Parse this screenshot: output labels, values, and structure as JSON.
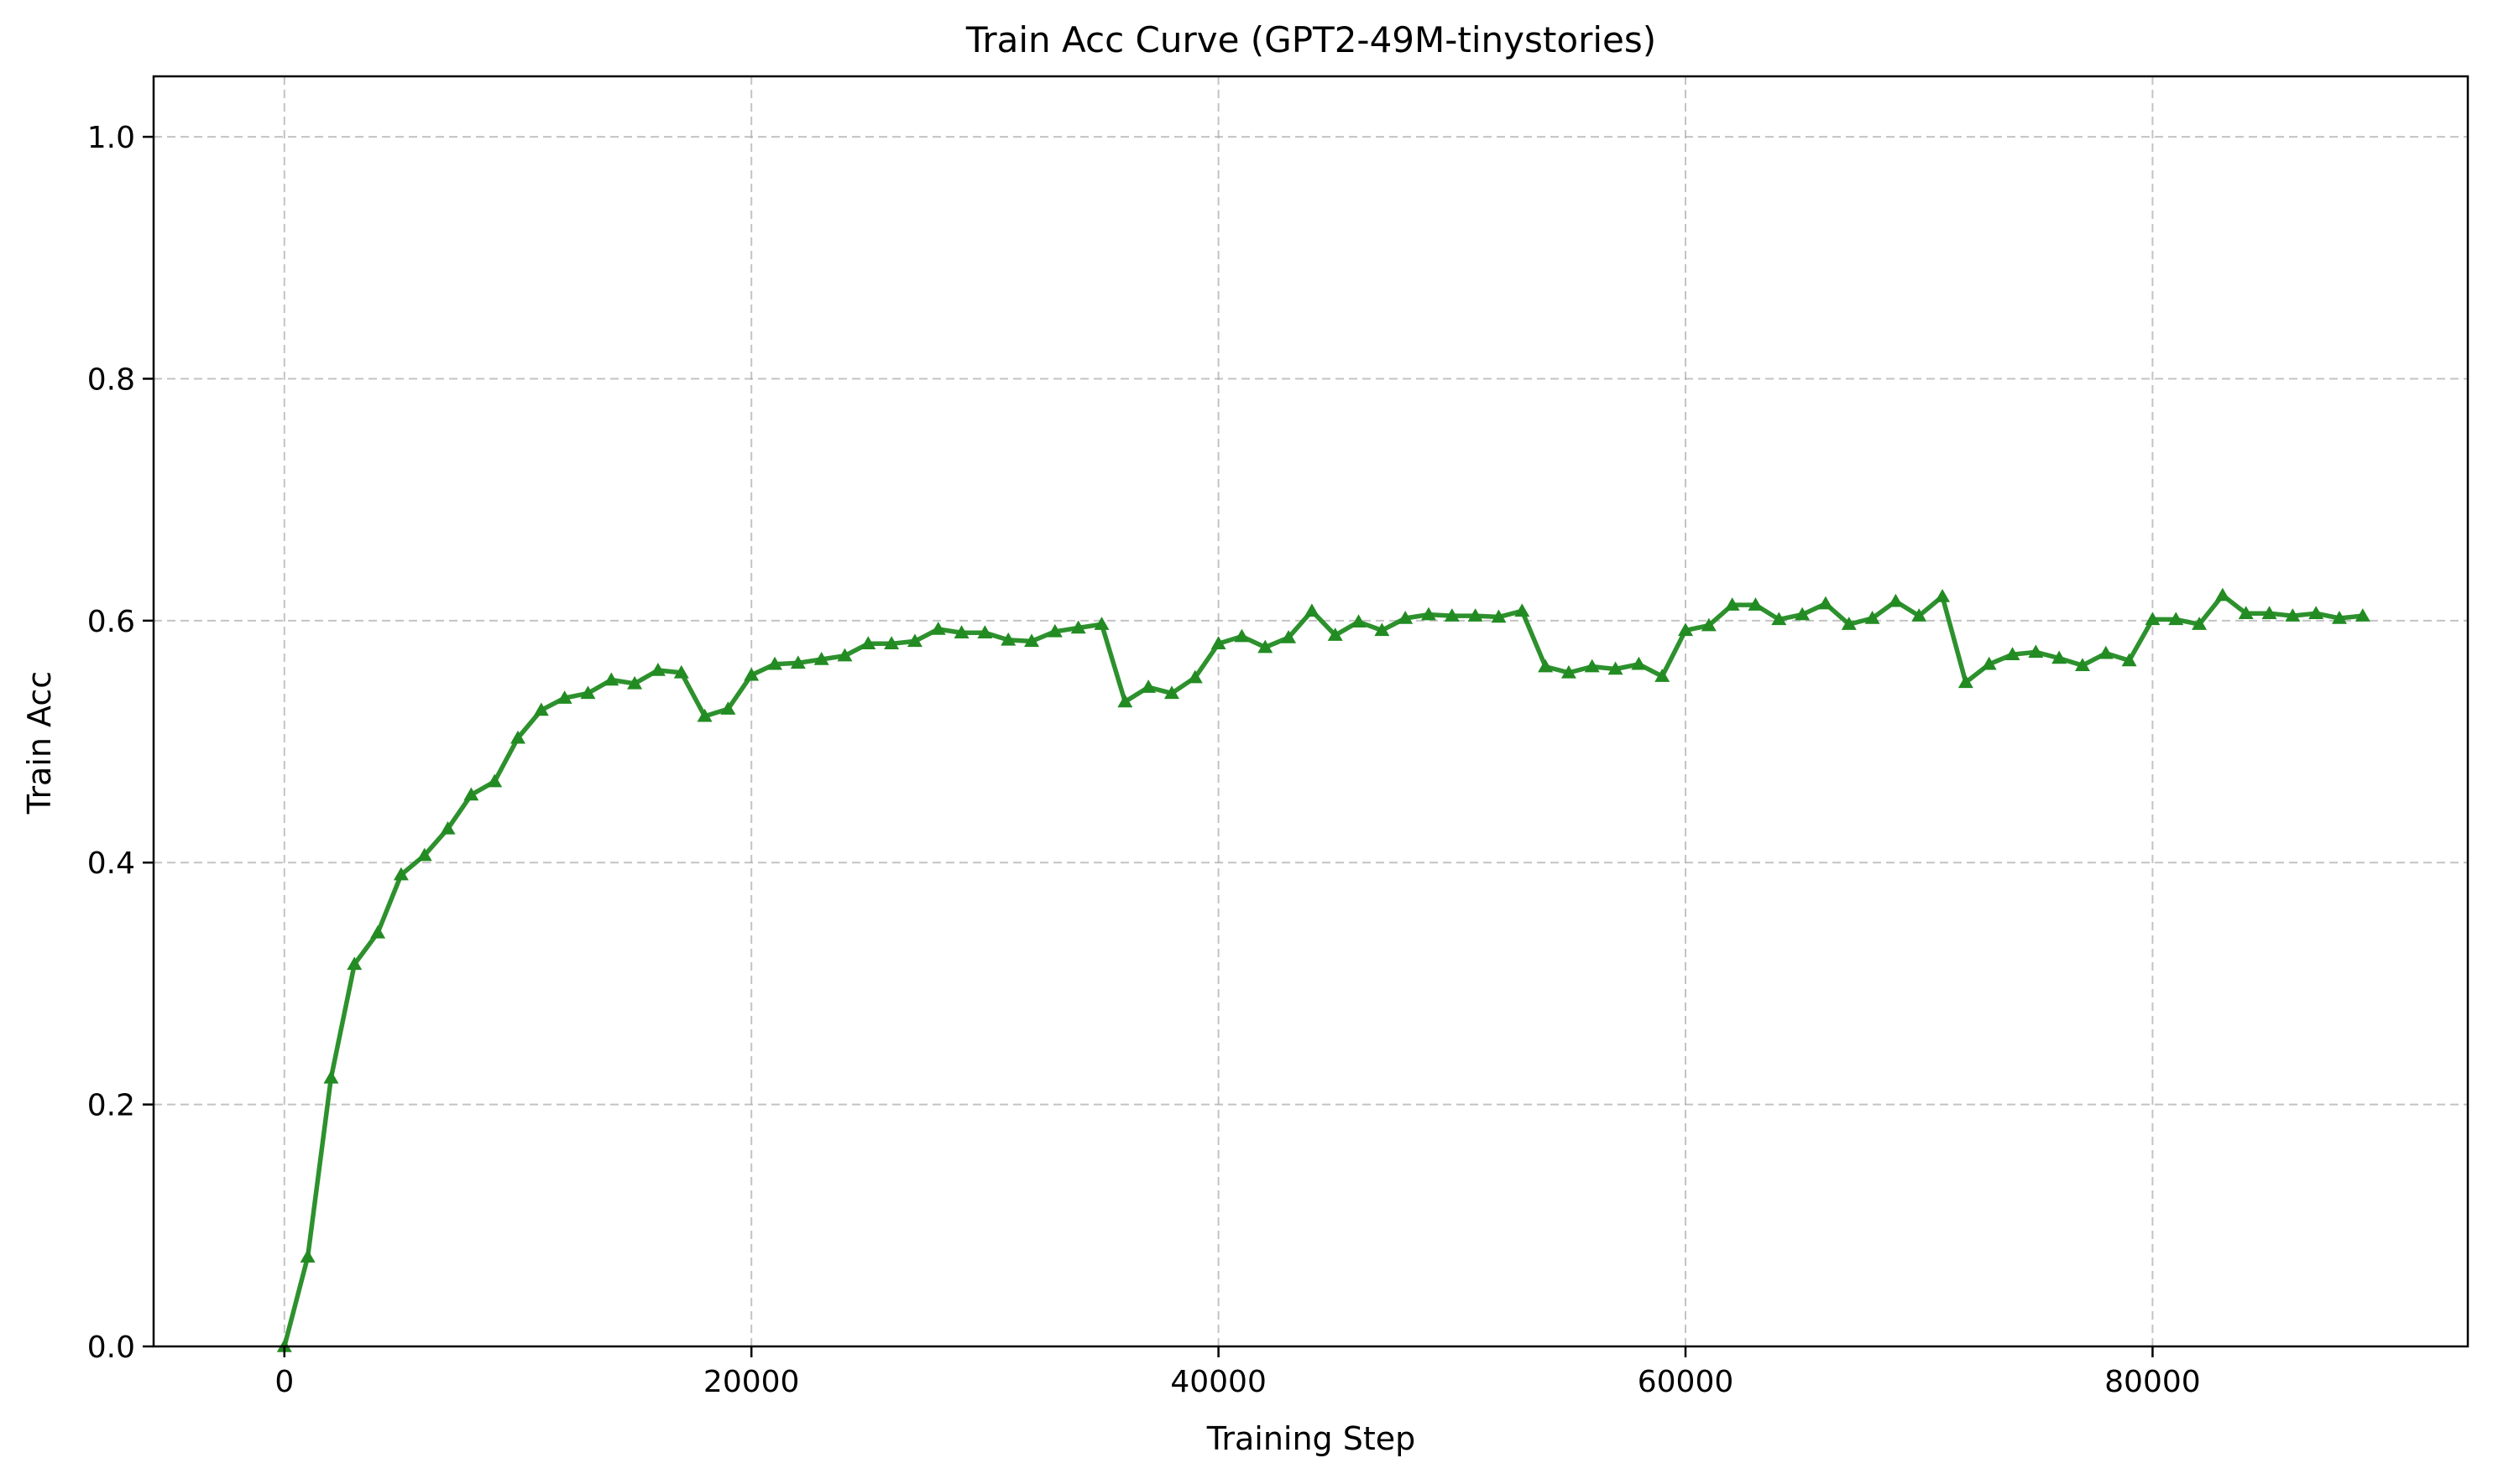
{
  "chart_data": {
    "type": "line",
    "title": "Train Acc Curve (GPT2-49M-tinystories)",
    "xlabel": "Training Step",
    "ylabel": "Train Acc",
    "xlim": [
      -5600,
      93500
    ],
    "ylim": [
      0,
      1.05
    ],
    "xticks": [
      0,
      20000,
      40000,
      60000,
      80000
    ],
    "yticks": [
      0.0,
      0.2,
      0.4,
      0.6,
      0.8,
      1.0
    ],
    "xtick_labels": [
      "0",
      "20000",
      "40000",
      "60000",
      "80000"
    ],
    "ytick_labels": [
      "0.0",
      "0.2",
      "0.4",
      "0.6",
      "0.8",
      "1.0"
    ],
    "grid": true,
    "legend": false,
    "series": [
      {
        "color": "#228B22",
        "marker": "triangle-up",
        "x": [
          0,
          1000,
          2000,
          3000,
          4000,
          5000,
          6000,
          7000,
          8000,
          9000,
          10000,
          11000,
          12000,
          13000,
          14000,
          15000,
          16000,
          17000,
          18000,
          19000,
          20000,
          21000,
          22000,
          23000,
          24000,
          25000,
          26000,
          27000,
          28000,
          29000,
          30000,
          31000,
          32000,
          33000,
          34000,
          35000,
          36000,
          37000,
          38000,
          39000,
          40000,
          41000,
          42000,
          43000,
          44000,
          45000,
          46000,
          47000,
          48000,
          49000,
          50000,
          51000,
          52000,
          53000,
          54000,
          55000,
          56000,
          57000,
          58000,
          59000,
          60000,
          61000,
          62000,
          63000,
          64000,
          65000,
          66000,
          67000,
          68000,
          69000,
          70000,
          71000,
          72000,
          73000,
          74000,
          75000,
          76000,
          77000,
          78000,
          79000,
          80000,
          81000,
          82000,
          83000,
          84000,
          85000,
          86000,
          87000,
          88000,
          89000
        ],
        "y": [
          0.0,
          0.074,
          0.222,
          0.316,
          0.342,
          0.39,
          0.406,
          0.428,
          0.456,
          0.467,
          0.503,
          0.526,
          0.536,
          0.54,
          0.551,
          0.548,
          0.559,
          0.557,
          0.521,
          0.527,
          0.555,
          0.564,
          0.565,
          0.568,
          0.571,
          0.581,
          0.581,
          0.583,
          0.593,
          0.59,
          0.59,
          0.584,
          0.583,
          0.591,
          0.594,
          0.597,
          0.533,
          0.545,
          0.54,
          0.553,
          0.581,
          0.587,
          0.578,
          0.586,
          0.608,
          0.588,
          0.599,
          0.592,
          0.602,
          0.605,
          0.604,
          0.604,
          0.603,
          0.608,
          0.562,
          0.557,
          0.562,
          0.56,
          0.564,
          0.554,
          0.592,
          0.596,
          0.613,
          0.613,
          0.601,
          0.605,
          0.614,
          0.597,
          0.602,
          0.616,
          0.604,
          0.62,
          0.549,
          0.564,
          0.572,
          0.574,
          0.569,
          0.563,
          0.573,
          0.567,
          0.601,
          0.601,
          0.597,
          0.621,
          0.606,
          0.606,
          0.604,
          0.606,
          0.602,
          0.604
        ]
      }
    ]
  }
}
